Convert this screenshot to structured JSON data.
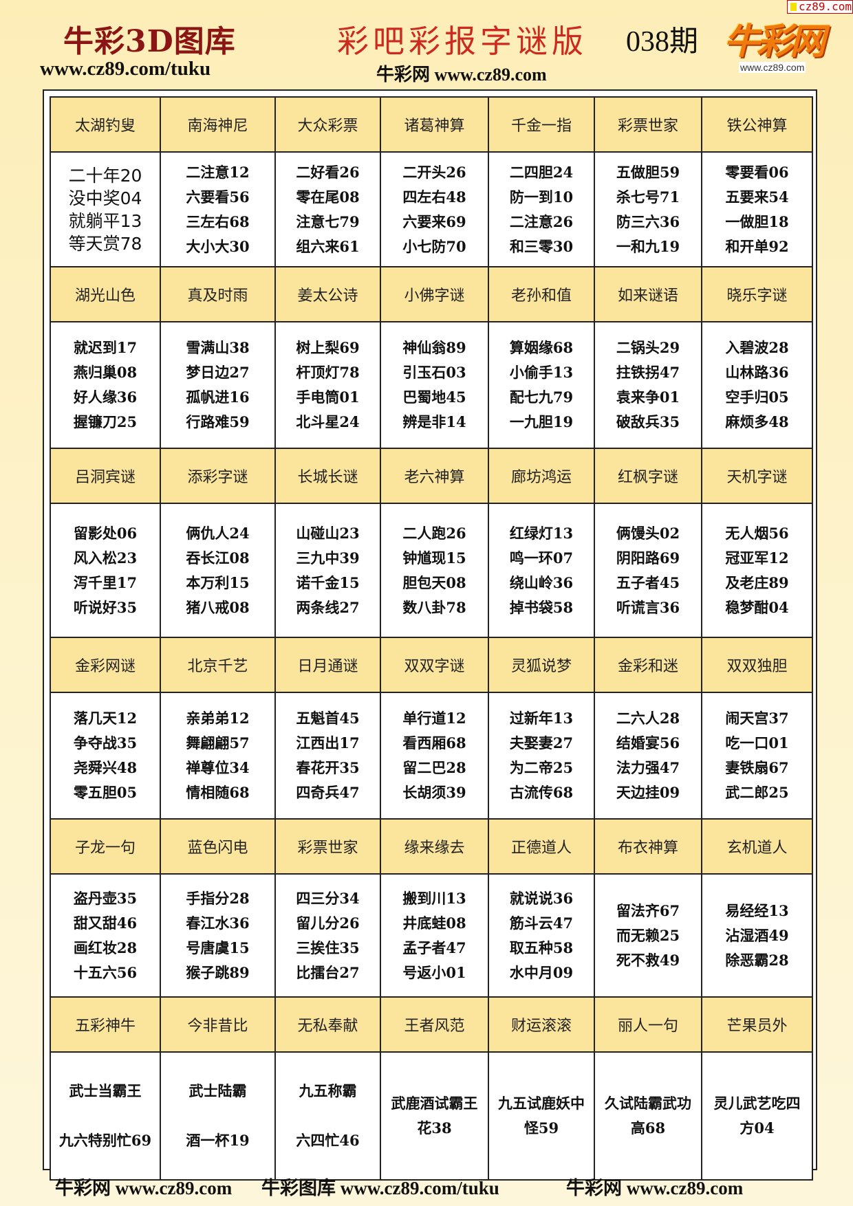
{
  "corner_tag": "cz89.com",
  "header": {
    "title_left": "牛彩3D图库",
    "url_left": "www.cz89.com/tuku",
    "title_main": "彩吧彩报字谜版",
    "issue": "038期",
    "sub_url": "牛彩网 www.cz89.com",
    "logo_text": "牛彩网",
    "logo_url": "www.cz89.com"
  },
  "colors": {
    "header_cell": "#fbe49b",
    "title_red": "#cc2a1e",
    "title_darkred": "#8b1414",
    "background": "#fdeeb8"
  },
  "rows": [
    [
      {
        "name": "太湖钓叟",
        "lines": [
          "二十年20",
          "没中奖04",
          "就躺平13",
          "等天赏78"
        ]
      },
      {
        "name": "南海神尼",
        "lines": [
          "二注意12",
          "六要看56",
          "三左右68",
          "大小大30"
        ]
      },
      {
        "name": "大众彩票",
        "lines": [
          "二好看26",
          "零在尾08",
          "注意七79",
          "组六来61"
        ]
      },
      {
        "name": "诸葛神算",
        "lines": [
          "二开头26",
          "四左右48",
          "六要来69",
          "小七防70"
        ]
      },
      {
        "name": "千金一指",
        "lines": [
          "二四胆24",
          "防一到10",
          "二注意26",
          "和三零30"
        ]
      },
      {
        "name": "彩票世家",
        "lines": [
          "五做胆59",
          "杀七号71",
          "防三六36",
          "一和九19"
        ]
      },
      {
        "name": "铁公神算",
        "lines": [
          "零要看06",
          "五要来54",
          "一做胆18",
          "和开单92"
        ]
      }
    ],
    [
      {
        "name": "湖光山色",
        "lines": [
          "就迟到17",
          "燕归巢08",
          "好人缘36",
          "握镰刀25"
        ]
      },
      {
        "name": "真及时雨",
        "lines": [
          "雪满山38",
          "梦日边27",
          "孤帆进16",
          "行路难59"
        ]
      },
      {
        "name": "姜太公诗",
        "lines": [
          "树上梨69",
          "杆顶灯78",
          "手电筒01",
          "北斗星24"
        ]
      },
      {
        "name": "小佛字谜",
        "lines": [
          "神仙翁89",
          "引玉石03",
          "巴蜀地45",
          "辨是非14"
        ]
      },
      {
        "name": "老孙和值",
        "lines": [
          "算姻缘68",
          "小偷手13",
          "配七九79",
          "一九胆19"
        ]
      },
      {
        "name": "如来谜语",
        "lines": [
          "二锅头29",
          "拄铁拐47",
          "袁来争01",
          "破敌兵35"
        ]
      },
      {
        "name": "晓乐字谜",
        "lines": [
          "入碧波28",
          "山林路36",
          "空手归05",
          "麻烦多48"
        ]
      }
    ],
    [
      {
        "name": "吕洞宾谜",
        "lines": [
          "留影处06",
          "风入松23",
          "泻千里17",
          "听说好35"
        ]
      },
      {
        "name": "添彩字谜",
        "lines": [
          "俩仇人24",
          "吞长江08",
          "本万利15",
          "猪八戒08"
        ]
      },
      {
        "name": "长城长谜",
        "lines": [
          "山碰山23",
          "三九中39",
          "诺千金15",
          "两条线27"
        ]
      },
      {
        "name": "老六神算",
        "lines": [
          "二人跑26",
          "钟馗现15",
          "胆包天08",
          "数八卦78"
        ]
      },
      {
        "name": "廊坊鸿运",
        "lines": [
          "红绿灯13",
          "鸣一环07",
          "绕山岭36",
          "掉书袋58"
        ]
      },
      {
        "name": "红枫字谜",
        "lines": [
          "俩馒头02",
          "阴阳路69",
          "五子者45",
          "听谎言36"
        ]
      },
      {
        "name": "天机字谜",
        "lines": [
          "无人烟56",
          "冠亚军12",
          "及老庄89",
          "稳梦酣04"
        ]
      }
    ],
    [
      {
        "name": "金彩网谜",
        "lines": [
          "落几天12",
          "争夺战35",
          "尧舜兴48",
          "零五胆05"
        ]
      },
      {
        "name": "北京千艺",
        "lines": [
          "亲弟弟12",
          "舞翩翩57",
          "禅尊位34",
          "情相随68"
        ]
      },
      {
        "name": "日月通谜",
        "lines": [
          "五魁首45",
          "江西出17",
          "春花开35",
          "四奇兵47"
        ]
      },
      {
        "name": "双双字谜",
        "lines": [
          "单行道12",
          "看西厢68",
          "留二巴28",
          "长胡须39"
        ]
      },
      {
        "name": "灵狐说梦",
        "lines": [
          "过新年13",
          "夫娶妻27",
          "为二帝25",
          "古流传68"
        ]
      },
      {
        "name": "金彩和迷",
        "lines": [
          "二六人28",
          "结婚宴56",
          "法力强47",
          "天边挂09"
        ]
      },
      {
        "name": "双双独胆",
        "lines": [
          "闹天宫37",
          "吃一口01",
          "妻铁扇67",
          "武二郎25"
        ]
      }
    ],
    [
      {
        "name": "子龙一句",
        "lines": [
          "盗丹壶35",
          "甜又甜46",
          "画红妆28",
          "十五六56"
        ]
      },
      {
        "name": "蓝色闪电",
        "lines": [
          "手指分28",
          "春江水36",
          "号唐虞15",
          "猴子跳89"
        ]
      },
      {
        "name": "彩票世家",
        "lines": [
          "四三分34",
          "留儿分26",
          "三挨住35",
          "比擂台27"
        ]
      },
      {
        "name": "缘来缘去",
        "lines": [
          "搬到川13",
          "井底蛙08",
          "孟子者47",
          "号返小01"
        ]
      },
      {
        "name": "正德道人",
        "lines": [
          "就说说36",
          "筋斗云47",
          "取五种58",
          "水中月09"
        ]
      },
      {
        "name": "布衣神算",
        "lines": [
          "留法齐67",
          "而无赖25",
          "死不救49"
        ]
      },
      {
        "name": "玄机道人",
        "lines": [
          "易经经13",
          "沾湿酒49",
          "除恶霸28"
        ]
      }
    ],
    [
      {
        "name": "五彩神牛",
        "lines": [
          "武士当霸王",
          "九六特别忙69"
        ]
      },
      {
        "name": "今非昔比",
        "lines": [
          "武士陆霸",
          "酒一杯19"
        ]
      },
      {
        "name": "无私奉献",
        "lines": [
          "九五称霸",
          "六四忙46"
        ]
      },
      {
        "name": "王者风范",
        "lines": [
          "武鹿酒试霸王",
          "花38"
        ]
      },
      {
        "name": "财运滚滚",
        "lines": [
          "九五试鹿妖中",
          "怪59"
        ]
      },
      {
        "name": "丽人一句",
        "lines": [
          "久试陆霸武功",
          "高68"
        ]
      },
      {
        "name": "芒果员外",
        "lines": [
          "灵儿武艺吃四",
          "方04"
        ]
      }
    ]
  ],
  "footer": [
    "牛彩网 www.cz89.com",
    "牛彩图库 www.cz89.com/tuku",
    "牛彩网 www.cz89.com"
  ]
}
